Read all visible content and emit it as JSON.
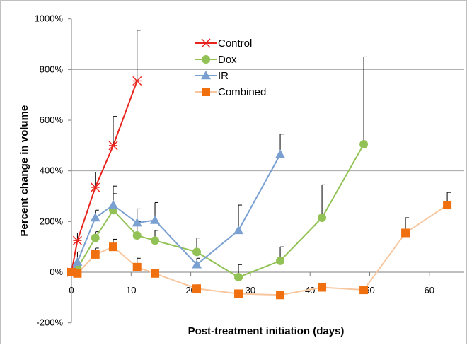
{
  "chart_data": {
    "type": "line",
    "xlabel": "Post-treatment initiation (days)",
    "ylabel": "Percent change in volume",
    "xlim": [
      0,
      66
    ],
    "ylim": [
      -200,
      1000
    ],
    "x_ticks": [
      0,
      10,
      20,
      30,
      40,
      50,
      60
    ],
    "y_ticks": [
      -200,
      0,
      200,
      400,
      600,
      800,
      1000
    ],
    "y_tick_labels": [
      "-200%",
      "0%",
      "200%",
      "400%",
      "600%",
      "800%",
      "1000%"
    ],
    "gridlines_y": [
      400,
      800
    ],
    "legend_position": "top-center",
    "series": [
      {
        "name": "Control",
        "color": "#e8231c",
        "marker": "asterisk",
        "x": [
          0,
          1,
          4,
          7,
          11
        ],
        "y": [
          0,
          125,
          335,
          500,
          755
        ],
        "error_plus": [
          0,
          30,
          60,
          115,
          200
        ]
      },
      {
        "name": "Dox",
        "color": "#92c256",
        "marker": "circle",
        "x": [
          0,
          1,
          4,
          7,
          11,
          14,
          21,
          28,
          35,
          42,
          49
        ],
        "y": [
          0,
          15,
          135,
          245,
          145,
          125,
          80,
          -20,
          45,
          215,
          505
        ],
        "error_plus": [
          0,
          20,
          25,
          65,
          55,
          40,
          55,
          50,
          55,
          130,
          345
        ]
      },
      {
        "name": "IR",
        "color": "#7aa0d2",
        "marker": "triangle",
        "x": [
          0,
          1,
          4,
          7,
          11,
          14,
          21,
          28,
          35
        ],
        "y": [
          0,
          40,
          215,
          265,
          195,
          205,
          30,
          165,
          465
        ],
        "error_plus": [
          0,
          40,
          30,
          75,
          55,
          70,
          25,
          100,
          80
        ]
      },
      {
        "name": "Combined",
        "color": "#f0700f",
        "line_color": "#f7c7a0",
        "marker": "square",
        "x": [
          0,
          1,
          4,
          7,
          11,
          14,
          21,
          28,
          35,
          42,
          49,
          56,
          63
        ],
        "y": [
          0,
          -5,
          70,
          100,
          20,
          -5,
          -65,
          -85,
          -90,
          -60,
          -70,
          155,
          265
        ],
        "error_plus": [
          0,
          10,
          25,
          30,
          35,
          15,
          15,
          10,
          10,
          15,
          10,
          60,
          50
        ]
      }
    ]
  }
}
